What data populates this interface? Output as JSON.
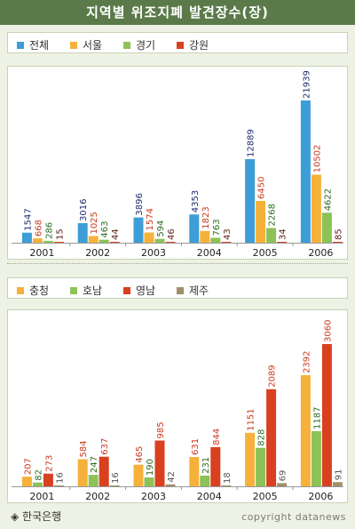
{
  "title": "지역별 위조지폐 발견장수(장)",
  "footer": {
    "source": "◈ 한국은행",
    "copyright": "copyright datanews"
  },
  "chart_data": [
    {
      "type": "bar",
      "categories": [
        "2001",
        "2002",
        "2003",
        "2004",
        "2005",
        "2006"
      ],
      "ylim": [
        0,
        21939
      ],
      "series": [
        {
          "name": "전체",
          "color": "#3d9dd6",
          "label_color": "#1f2a6b",
          "values": [
            1547,
            3016,
            3896,
            4353,
            12889,
            21939
          ]
        },
        {
          "name": "서울",
          "color": "#f5b13a",
          "label_color": "#cc3a1f",
          "values": [
            668,
            1025,
            1574,
            1823,
            6450,
            10502
          ]
        },
        {
          "name": "경기",
          "color": "#8cc256",
          "label_color": "#2b6a1e",
          "values": [
            286,
            463,
            594,
            763,
            2268,
            4622
          ]
        },
        {
          "name": "강원",
          "color": "#d9401f",
          "label_color": "#5a1c10",
          "values": [
            15,
            44,
            46,
            43,
            34,
            85
          ]
        }
      ]
    },
    {
      "type": "bar",
      "categories": [
        "2001",
        "2002",
        "2003",
        "2004",
        "2005",
        "2006"
      ],
      "ylim": [
        0,
        3060
      ],
      "series": [
        {
          "name": "충청",
          "color": "#f5b13a",
          "label_color": "#cc3a1f",
          "values": [
            207,
            584,
            465,
            631,
            1151,
            2392
          ]
        },
        {
          "name": "호남",
          "color": "#8cc256",
          "label_color": "#2b6a1e",
          "values": [
            82,
            247,
            190,
            231,
            828,
            1187
          ]
        },
        {
          "name": "영남",
          "color": "#d9401f",
          "label_color": "#cc3a1f",
          "values": [
            273,
            637,
            985,
            844,
            2089,
            3060
          ]
        },
        {
          "name": "제주",
          "color": "#a08f6a",
          "label_color": "#555555",
          "values": [
            16,
            16,
            42,
            18,
            69,
            91
          ]
        }
      ]
    }
  ]
}
